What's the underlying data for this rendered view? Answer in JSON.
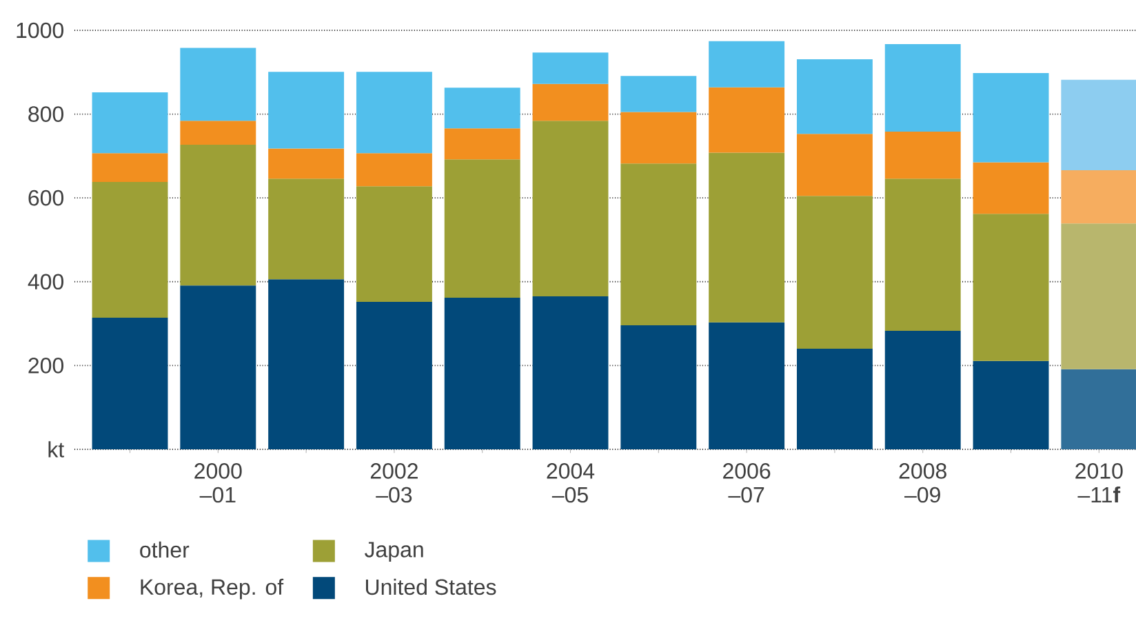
{
  "chart_data": {
    "type": "bar",
    "stacked": true,
    "categories": [
      null,
      "2000 –01",
      null,
      "2002 –03",
      null,
      "2004 –05",
      null,
      "2006 –07",
      null,
      "2008 –09",
      null,
      "2010 –11**f**"
    ],
    "series": [
      {
        "name": "United States",
        "color": "#02497a",
        "colors": [
          "#02497a",
          "#02497a",
          "#02497a",
          "#02497a",
          "#02497a",
          "#02497a",
          "#02497a",
          "#02497a",
          "#02497a",
          "#02497a",
          "#02497a",
          "#316f99"
        ],
        "values": [
          314,
          391,
          406,
          352,
          362,
          365,
          296,
          303,
          240,
          283,
          211,
          191
        ]
      },
      {
        "name": "Japan",
        "color": "#9da036",
        "colors": [
          "#9da036",
          "#9da036",
          "#9da036",
          "#9da036",
          "#9da036",
          "#9da036",
          "#9da036",
          "#9da036",
          "#9da036",
          "#9da036",
          "#9da036",
          "#b8b66d"
        ],
        "values": [
          324,
          336,
          240,
          276,
          330,
          419,
          386,
          405,
          365,
          363,
          351,
          348
        ]
      },
      {
        "name": "Korea, Rep. of",
        "color": "#f28f1f",
        "colors": [
          "#f28f1f",
          "#f28f1f",
          "#f28f1f",
          "#f28f1f",
          "#f28f1f",
          "#f28f1f",
          "#f28f1f",
          "#f28f1f",
          "#f28f1f",
          "#f28f1f",
          "#f28f1f",
          "#f6ad5f"
        ],
        "values": [
          69,
          57,
          72,
          79,
          74,
          88,
          123,
          156,
          148,
          112,
          123,
          127
        ]
      },
      {
        "name": "other",
        "color": "#52bfec",
        "colors": [
          "#52bfec",
          "#52bfec",
          "#52bfec",
          "#52bfec",
          "#52bfec",
          "#52bfec",
          "#52bfec",
          "#52bfec",
          "#52bfec",
          "#52bfec",
          "#52bfec",
          "#8dcdf0"
        ],
        "values": [
          145,
          174,
          183,
          194,
          97,
          75,
          86,
          110,
          178,
          209,
          213,
          216
        ]
      }
    ],
    "ylim": [
      0,
      1000
    ],
    "yticks": [
      {
        "value": 0,
        "label": "kt"
      },
      200,
      400,
      600,
      800,
      1000
    ],
    "grid": "y",
    "legend": "bottom left"
  }
}
